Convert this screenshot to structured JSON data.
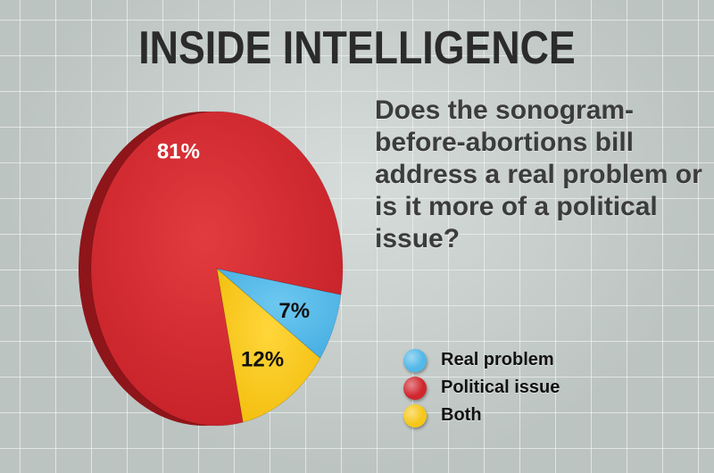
{
  "title": "INSIDE INTELLIGENCE",
  "question": "Does the sonogram-before-abortions bill address a real problem or is it more of a political issue?",
  "chart_data": {
    "type": "pie",
    "title": "INSIDE INTELLIGENCE",
    "subtitle": "Does the sonogram-before-abortions bill address a real problem or is it more of a political issue?",
    "categories": [
      "Political issue",
      "Real problem",
      "Both"
    ],
    "values": [
      81,
      7,
      12
    ],
    "labels": [
      "81%",
      "7%",
      "12%"
    ],
    "colors": [
      "#d0262e",
      "#52b8e8",
      "#f6c719"
    ],
    "legend_placement": "bottom-right",
    "legend": [
      {
        "label": "Real problem",
        "color": "#52b8e8"
      },
      {
        "label": "Political issue",
        "color": "#d0262e"
      },
      {
        "label": "Both",
        "color": "#f6c719"
      }
    ]
  }
}
